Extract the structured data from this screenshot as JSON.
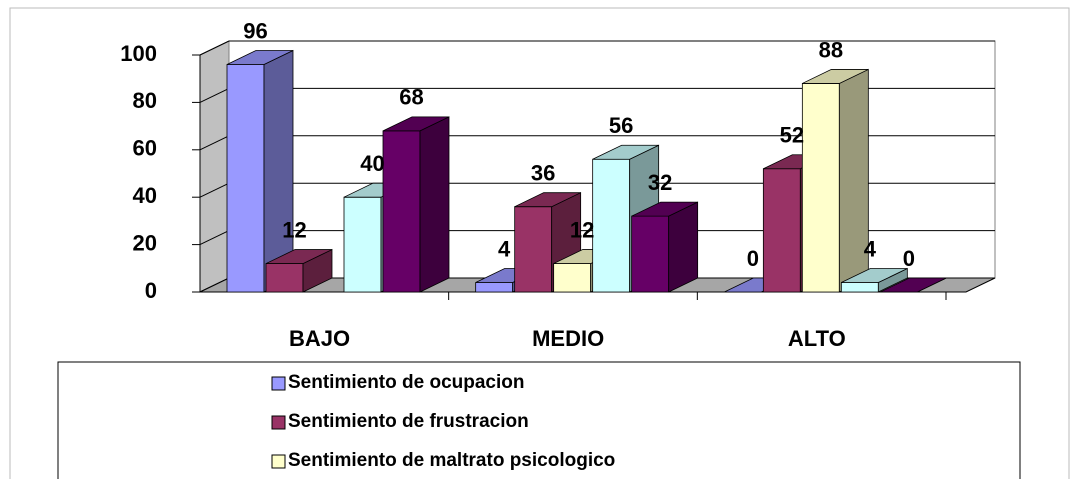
{
  "chart_data": {
    "type": "bar3d",
    "categories": [
      "BAJO",
      "MEDIO",
      "ALTO"
    ],
    "series": [
      {
        "name": "Sentimiento de ocupacion",
        "color": "#9999ff",
        "values": [
          96,
          4,
          0
        ]
      },
      {
        "name": "Sentimiento de frustracion",
        "color": "#993366",
        "values": [
          12,
          36,
          52
        ]
      },
      {
        "name": "Sentimiento de  maltrato psicologico",
        "color": "#ffffcc",
        "values": [
          null,
          12,
          88
        ]
      },
      {
        "color": "#ccffff",
        "values": [
          40,
          56,
          4
        ]
      },
      {
        "color": "#660066",
        "values": [
          68,
          32,
          0
        ]
      }
    ],
    "ylim": [
      0,
      100
    ],
    "yticks": [
      0,
      20,
      40,
      60,
      80,
      100
    ],
    "grid": true,
    "legend": "bottom"
  }
}
